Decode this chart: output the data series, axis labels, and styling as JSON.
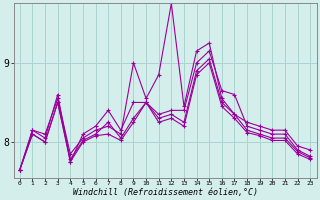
{
  "xlabel": "Windchill (Refroidissement éolien,°C)",
  "background_color": "#d4eeec",
  "grid_color": "#aad4d0",
  "line_color": "#990099",
  "x_ticks": [
    0,
    1,
    2,
    3,
    4,
    5,
    6,
    7,
    8,
    9,
    10,
    11,
    12,
    13,
    14,
    15,
    16,
    17,
    18,
    19,
    20,
    21,
    22,
    23
  ],
  "ylim": [
    7.55,
    9.75
  ],
  "yticks": [
    8,
    9
  ],
  "lines": [
    [
      7.65,
      8.15,
      8.1,
      8.55,
      7.85,
      8.05,
      8.15,
      8.2,
      8.1,
      9.0,
      8.55,
      8.85,
      9.75,
      8.45,
      9.15,
      9.25,
      8.55,
      8.35,
      8.25,
      8.2,
      8.15,
      8.15,
      7.95,
      7.9
    ],
    [
      7.65,
      8.15,
      8.05,
      8.6,
      7.75,
      8.1,
      8.2,
      8.4,
      8.15,
      8.5,
      8.5,
      8.35,
      8.4,
      8.4,
      9.0,
      9.15,
      8.65,
      8.6,
      8.2,
      8.15,
      8.1,
      8.1,
      7.9,
      7.82
    ],
    [
      7.65,
      8.1,
      8.0,
      8.5,
      7.78,
      8.02,
      8.1,
      8.25,
      8.05,
      8.3,
      8.5,
      8.3,
      8.35,
      8.25,
      8.9,
      9.05,
      8.5,
      8.35,
      8.15,
      8.1,
      8.05,
      8.05,
      7.88,
      7.8
    ],
    [
      7.65,
      8.1,
      8.0,
      8.5,
      7.75,
      8.0,
      8.08,
      8.1,
      8.02,
      8.25,
      8.5,
      8.25,
      8.3,
      8.2,
      8.85,
      9.0,
      8.45,
      8.3,
      8.12,
      8.08,
      8.02,
      8.02,
      7.85,
      7.78
    ]
  ]
}
